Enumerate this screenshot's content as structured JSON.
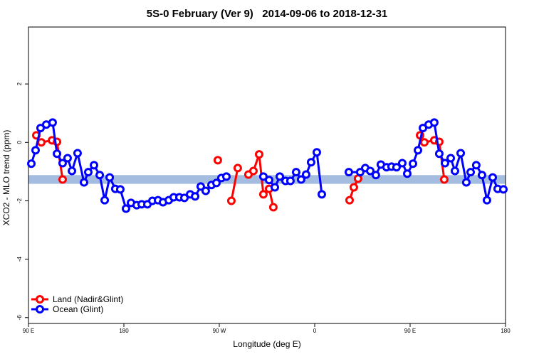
{
  "chart_data": {
    "type": "line",
    "title": "5S-0 February (Ver 9)   2014-09-06 to 2018-12-31",
    "xlabel": "Longitude (deg E)",
    "ylabel": "XCO2 - MLO trend (ppm)",
    "xlim": [
      90,
      540
    ],
    "ylim": [
      -6.2,
      3.95
    ],
    "xticks": [
      {
        "value": 90,
        "label": "90 E"
      },
      {
        "value": 180,
        "label": "180"
      },
      {
        "value": 270,
        "label": "90 W"
      },
      {
        "value": 360,
        "label": "0"
      },
      {
        "value": 450,
        "label": "90 E"
      },
      {
        "value": 540,
        "label": "180"
      }
    ],
    "yticks": [
      2,
      0,
      -2,
      -4,
      -6
    ],
    "band": {
      "ylim": [
        -1.42,
        -1.12
      ],
      "color": "#a3bcdf"
    },
    "legend": "bottom-left",
    "series": [
      {
        "name": "Land (Nadir&Glint)",
        "color": "#ff0000",
        "x": [
          97.4,
          102.1,
          112.2,
          116.9,
          122.2,
          null,
          268.6,
          null,
          281.4,
          287.4,
          null,
          297.5,
          302.2,
          307.6,
          311.6,
          317,
          321,
          null,
          392.9,
          396.9,
          400.9,
          null,
          459.4,
          463.4,
          472.8,
          477.5,
          482.2
        ],
        "values": [
          0.24,
          0,
          0.07,
          0.02,
          -1.27,
          null,
          -0.61,
          null,
          -2.0,
          -0.88,
          null,
          -1.1,
          -0.98,
          -0.41,
          -1.78,
          -1.59,
          -2.22,
          null,
          -1.98,
          -1.54,
          -1.24,
          null,
          0.24,
          0,
          0.07,
          0.02,
          -1.27
        ]
      },
      {
        "name": "Ocean (Glint)",
        "color": "#0000ff",
        "x": [
          92.7,
          96.7,
          101.4,
          106.8,
          112.8,
          116.9,
          122.2,
          126.9,
          131,
          136.3,
          142.4,
          146.4,
          151.8,
          157.2,
          161.9,
          166.6,
          171.9,
          176.6,
          182,
          186.7,
          192.1,
          196.8,
          202.2,
          206.9,
          212.2,
          216.9,
          222.3,
          227,
          232.4,
          237.1,
          242.5,
          247.2,
          252.5,
          257.2,
          262.6,
          267.3,
          272,
          276.7,
          null,
          311.6,
          317,
          322.4,
          327.1,
          332.5,
          337.1,
          342.5,
          347.2,
          351.9,
          356.6,
          362,
          366.7,
          null,
          392.2,
          402.9,
          407.7,
          412.4,
          417.7,
          422.4,
          427.8,
          432.5,
          437.2,
          442.6,
          447.3,
          452.7,
          457.4,
          462.1,
          467.5,
          472.8,
          477.5,
          482.9,
          488.3,
          492.3,
          497.7,
          503,
          507.1,
          512.4,
          517.8,
          522.5,
          527.9,
          532.6,
          538
        ],
        "values": [
          -0.73,
          -0.27,
          0.49,
          0.61,
          0.68,
          -0.39,
          -0.71,
          -0.54,
          -0.98,
          -0.37,
          -1.37,
          -1.02,
          -0.78,
          -1.12,
          -1.98,
          -1.2,
          -1.59,
          -1.61,
          -2.27,
          -2.07,
          -2.15,
          -2.12,
          -2.12,
          -2.0,
          -1.98,
          -2.05,
          -1.98,
          -1.88,
          -1.88,
          -1.9,
          -1.78,
          -1.85,
          -1.51,
          -1.66,
          -1.46,
          -1.39,
          -1.22,
          -1.17,
          null,
          -1.17,
          -1.29,
          -1.54,
          -1.17,
          -1.32,
          -1.32,
          -1.02,
          -1.27,
          -1.1,
          -0.68,
          -0.34,
          -1.78,
          null,
          -1.02,
          -1.02,
          -0.88,
          -0.98,
          -1.12,
          -0.76,
          -0.85,
          -0.83,
          -0.85,
          -0.71,
          -1.07,
          -0.73,
          -0.27,
          0.49,
          0.61,
          0.68,
          -0.39,
          -0.71,
          -0.54,
          -0.98,
          -0.37,
          -1.37,
          -1.02,
          -0.78,
          -1.12,
          -1.98,
          -1.2,
          -1.59,
          -1.61
        ]
      }
    ]
  }
}
